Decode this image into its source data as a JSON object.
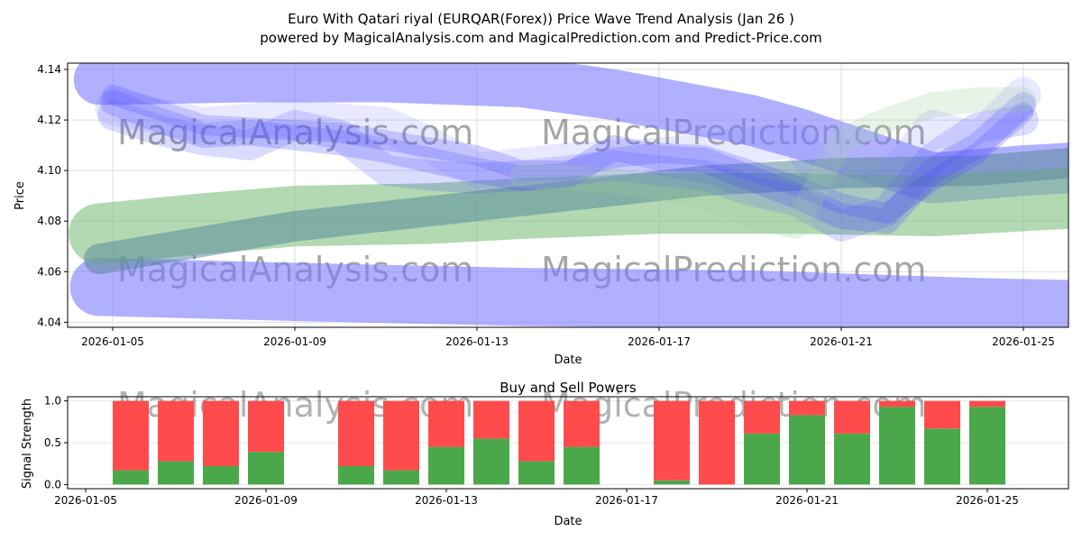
{
  "chart_data": [
    {
      "type": "area",
      "title": "Euro With Qatari riyal (EURQAR(Forex)) Price Wave Trend Analysis (Jan 26 )",
      "subtitle": "powered by MagicalAnalysis.com and MagicalPrediction.com and Predict-Price.com",
      "xlabel": "Date",
      "ylabel": "Price",
      "xlim": [
        "2026-01-04",
        "2026-01-26"
      ],
      "ylim": [
        4.038,
        4.1425
      ],
      "yticks": [
        "4.04",
        "4.06",
        "4.08",
        "4.10",
        "4.12",
        "4.14"
      ],
      "xticks": [
        "2026-01-05",
        "2026-01-09",
        "2026-01-13",
        "2026-01-17",
        "2026-01-21",
        "2026-01-25"
      ],
      "watermarks": [
        "MagicalAnalysis.com",
        "MagicalPrediction.com"
      ],
      "bands": [
        {
          "name": "upper-blue-band",
          "color": "#7b7bff",
          "opacity": 0.6,
          "width": 0.02,
          "x": [
            0.7,
            1,
            4,
            7,
            10,
            12,
            15,
            16,
            19,
            21,
            23,
            25
          ],
          "y": [
            4.136,
            4.136,
            4.137,
            4.137,
            4.135,
            4.13,
            4.12,
            4.115,
            4.097,
            4.1,
            4.102,
            4.1
          ]
        },
        {
          "name": "lower-blue-band",
          "color": "#7b7bff",
          "opacity": 0.6,
          "width": 0.023,
          "x": [
            0.7,
            5,
            10,
            15,
            20,
            25
          ],
          "y": [
            4.054,
            4.052,
            4.05,
            4.049,
            4.046,
            4.044
          ]
        },
        {
          "name": "green-band",
          "color": "#7fbf7f",
          "opacity": 0.6,
          "width": 0.024,
          "x": [
            0.7,
            3,
            5,
            8,
            10,
            13,
            16,
            19,
            22,
            25
          ],
          "y": [
            4.075,
            4.079,
            4.082,
            4.083,
            4.085,
            4.087,
            4.087,
            4.086,
            4.089,
            4.096
          ]
        },
        {
          "name": "teal-band",
          "color": "#5a8a9a",
          "opacity": 0.55,
          "width": 0.012,
          "x": [
            0.7,
            5,
            10,
            14,
            17,
            20,
            22,
            25
          ],
          "y": [
            4.065,
            4.078,
            4.088,
            4.096,
            4.099,
            4.1,
            4.103,
            4.1
          ]
        },
        {
          "name": "wave-1",
          "color": "#4b4bff",
          "opacity": 0.25,
          "width": 0.008,
          "x": [
            1,
            2,
            3,
            4,
            5,
            6,
            7,
            8,
            9,
            10,
            11,
            12,
            13,
            14,
            15,
            16,
            17,
            18,
            19,
            20,
            21
          ],
          "y": [
            4.13,
            4.124,
            4.118,
            4.117,
            4.116,
            4.115,
            4.112,
            4.109,
            4.106,
            4.1,
            4.1,
            4.105,
            4.107,
            4.106,
            4.1,
            4.094,
            4.087,
            4.083,
            4.096,
            4.107,
            4.123
          ]
        },
        {
          "name": "wave-2",
          "color": "#4b4bff",
          "opacity": 0.25,
          "width": 0.01,
          "x": [
            1,
            2,
            3,
            4,
            5,
            6,
            7,
            8,
            9,
            10,
            11,
            12,
            13,
            14,
            15,
            16,
            17,
            18,
            19,
            20,
            21
          ],
          "y": [
            4.127,
            4.12,
            4.114,
            4.115,
            4.113,
            4.111,
            4.108,
            4.104,
            4.1,
            4.097,
            4.098,
            4.109,
            4.105,
            4.104,
            4.097,
            4.09,
            4.082,
            4.08,
            4.1,
            4.11,
            4.126
          ]
        },
        {
          "name": "wave-3",
          "color": "#4b4bff",
          "opacity": 0.2,
          "width": 0.012,
          "x": [
            1,
            2,
            3,
            4,
            5,
            6,
            7,
            8,
            9,
            10,
            11,
            12,
            13,
            14,
            15,
            16,
            17,
            18,
            19,
            20,
            21
          ],
          "y": [
            4.122,
            4.116,
            4.112,
            4.11,
            4.118,
            4.114,
            4.1,
            4.098,
            4.097,
            4.098,
            4.1,
            4.102,
            4.1,
            4.098,
            4.092,
            4.088,
            4.078,
            4.084,
            4.105,
            4.117,
            4.12
          ]
        },
        {
          "name": "wave-4",
          "color": "#8080ff",
          "opacity": 0.18,
          "width": 0.014,
          "x": [
            1,
            3,
            5,
            7,
            8,
            9,
            11,
            13,
            15,
            16,
            17,
            18,
            19,
            20,
            21
          ],
          "y": [
            4.125,
            4.118,
            4.121,
            4.118,
            4.11,
            4.1,
            4.104,
            4.106,
            4.11,
            4.112,
            4.09,
            4.094,
            4.117,
            4.112,
            4.13
          ]
        },
        {
          "name": "wave-5",
          "color": "#9fcf9f",
          "opacity": 0.25,
          "width": 0.01,
          "x": [
            10,
            12,
            14,
            15,
            16,
            17,
            18,
            19,
            20,
            21
          ],
          "y": [
            4.098,
            4.096,
            4.09,
            4.082,
            4.078,
            4.112,
            4.12,
            4.126,
            4.128,
            4.128
          ]
        }
      ]
    },
    {
      "type": "bar",
      "title": "Buy and Sell Powers",
      "xlabel": "Date",
      "ylabel": "Signal Strength",
      "xlim": [
        "2026-01-04.6",
        "2026-01-26.8"
      ],
      "ylim": [
        -0.05,
        1.05
      ],
      "yticks": [
        "0.0",
        "0.5",
        "1.0"
      ],
      "xticks": [
        "2026-01-05",
        "2026-01-09",
        "2026-01-13",
        "2026-01-17",
        "2026-01-21",
        "2026-01-25"
      ],
      "categories": [
        "2026-01-06",
        "2026-01-07",
        "2026-01-08",
        "2026-01-09",
        "2026-01-11",
        "2026-01-12",
        "2026-01-13",
        "2026-01-14",
        "2026-01-15",
        "2026-01-16",
        "2026-01-18",
        "2026-01-19",
        "2026-01-20",
        "2026-01-21",
        "2026-01-22",
        "2026-01-23",
        "2026-01-24",
        "2026-01-25"
      ],
      "day_offsets": [
        1,
        2,
        3,
        4,
        6,
        7,
        8,
        9,
        10,
        11,
        13,
        14,
        15,
        16,
        17,
        18,
        19,
        20
      ],
      "series": [
        {
          "name": "Buy",
          "color": "#4aa84a",
          "values": [
            0.17,
            0.28,
            0.22,
            0.39,
            0.22,
            0.17,
            0.45,
            0.55,
            0.28,
            0.45,
            0.05,
            0.0,
            0.61,
            0.83,
            0.61,
            0.93,
            0.67,
            0.93
          ]
        },
        {
          "name": "Sell",
          "color": "#ff4b4b",
          "values": [
            0.83,
            0.72,
            0.78,
            0.61,
            0.78,
            0.83,
            0.55,
            0.45,
            0.72,
            0.55,
            0.95,
            1.0,
            0.39,
            0.17,
            0.39,
            0.07,
            0.33,
            0.07
          ]
        }
      ]
    }
  ]
}
